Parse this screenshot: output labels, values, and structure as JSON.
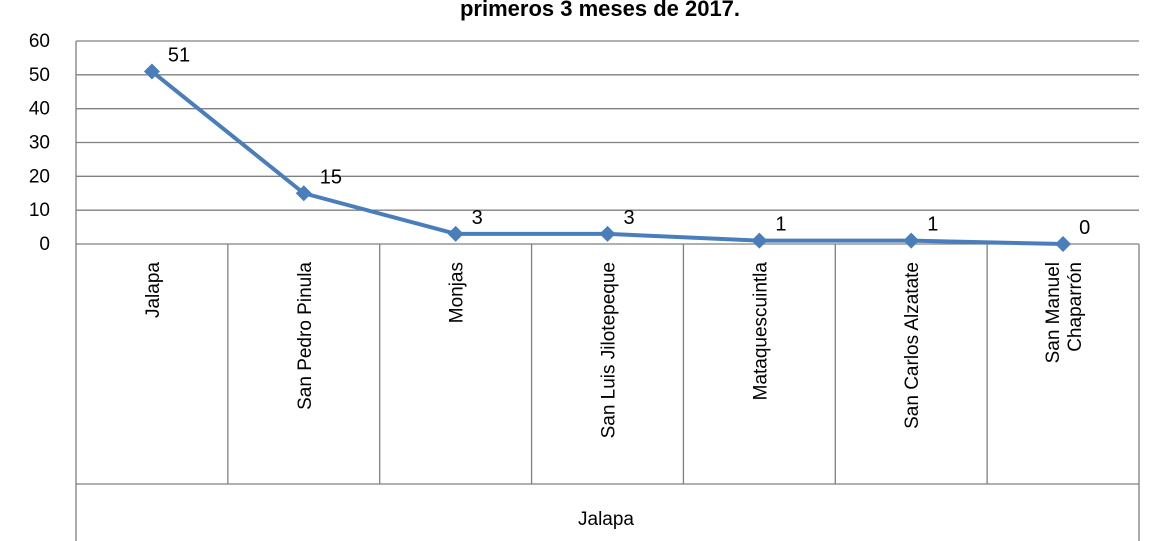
{
  "chart_data": {
    "type": "line",
    "title": "primeros 3 meses de 2017.",
    "xlabel": "",
    "ylabel": "",
    "ylim": [
      0,
      60
    ],
    "yticks": [
      0,
      10,
      20,
      30,
      40,
      50,
      60
    ],
    "grid": true,
    "legend": "none",
    "group_label": "Jalapa",
    "categories": [
      [
        "Jalapa"
      ],
      [
        "San Pedro Pinula"
      ],
      [
        "Monjas"
      ],
      [
        "San Luis Jilotepeque"
      ],
      [
        "Mataquescuintla"
      ],
      [
        "San Carlos Alzatate"
      ],
      [
        "San Manuel",
        "Chaparrón"
      ]
    ],
    "series": [
      {
        "values": [
          51,
          15,
          3,
          3,
          1,
          1,
          0
        ],
        "color": "#4a7ebb"
      }
    ],
    "data_labels": [
      "51",
      "15",
      "3",
      "3",
      "1",
      "1",
      "0"
    ]
  }
}
